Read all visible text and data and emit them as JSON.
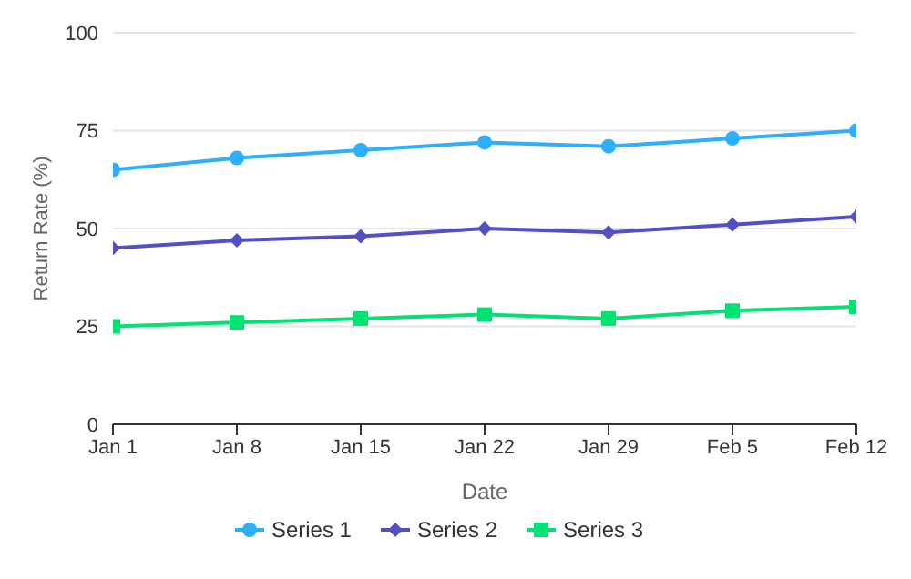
{
  "chart_data": {
    "type": "line",
    "xlabel": "Date",
    "ylabel": "Return Rate (%)",
    "categories": [
      "Jan 1",
      "Jan 8",
      "Jan 15",
      "Jan 22",
      "Jan 29",
      "Feb 5",
      "Feb 12"
    ],
    "series": [
      {
        "name": "Series 1",
        "color": "#2caffe",
        "marker": "circle",
        "values": [
          65,
          68,
          70,
          72,
          71,
          73,
          75
        ]
      },
      {
        "name": "Series 2",
        "color": "#544fc5",
        "marker": "diamond",
        "values": [
          45,
          47,
          48,
          50,
          49,
          51,
          53
        ]
      },
      {
        "name": "Series 3",
        "color": "#00e272",
        "marker": "square",
        "values": [
          25,
          26,
          27,
          28,
          27,
          29,
          30
        ]
      }
    ],
    "ylim": [
      0,
      100
    ],
    "yticks": [
      0,
      25,
      50,
      75,
      100
    ],
    "grid": "y",
    "legend": "bottom"
  }
}
